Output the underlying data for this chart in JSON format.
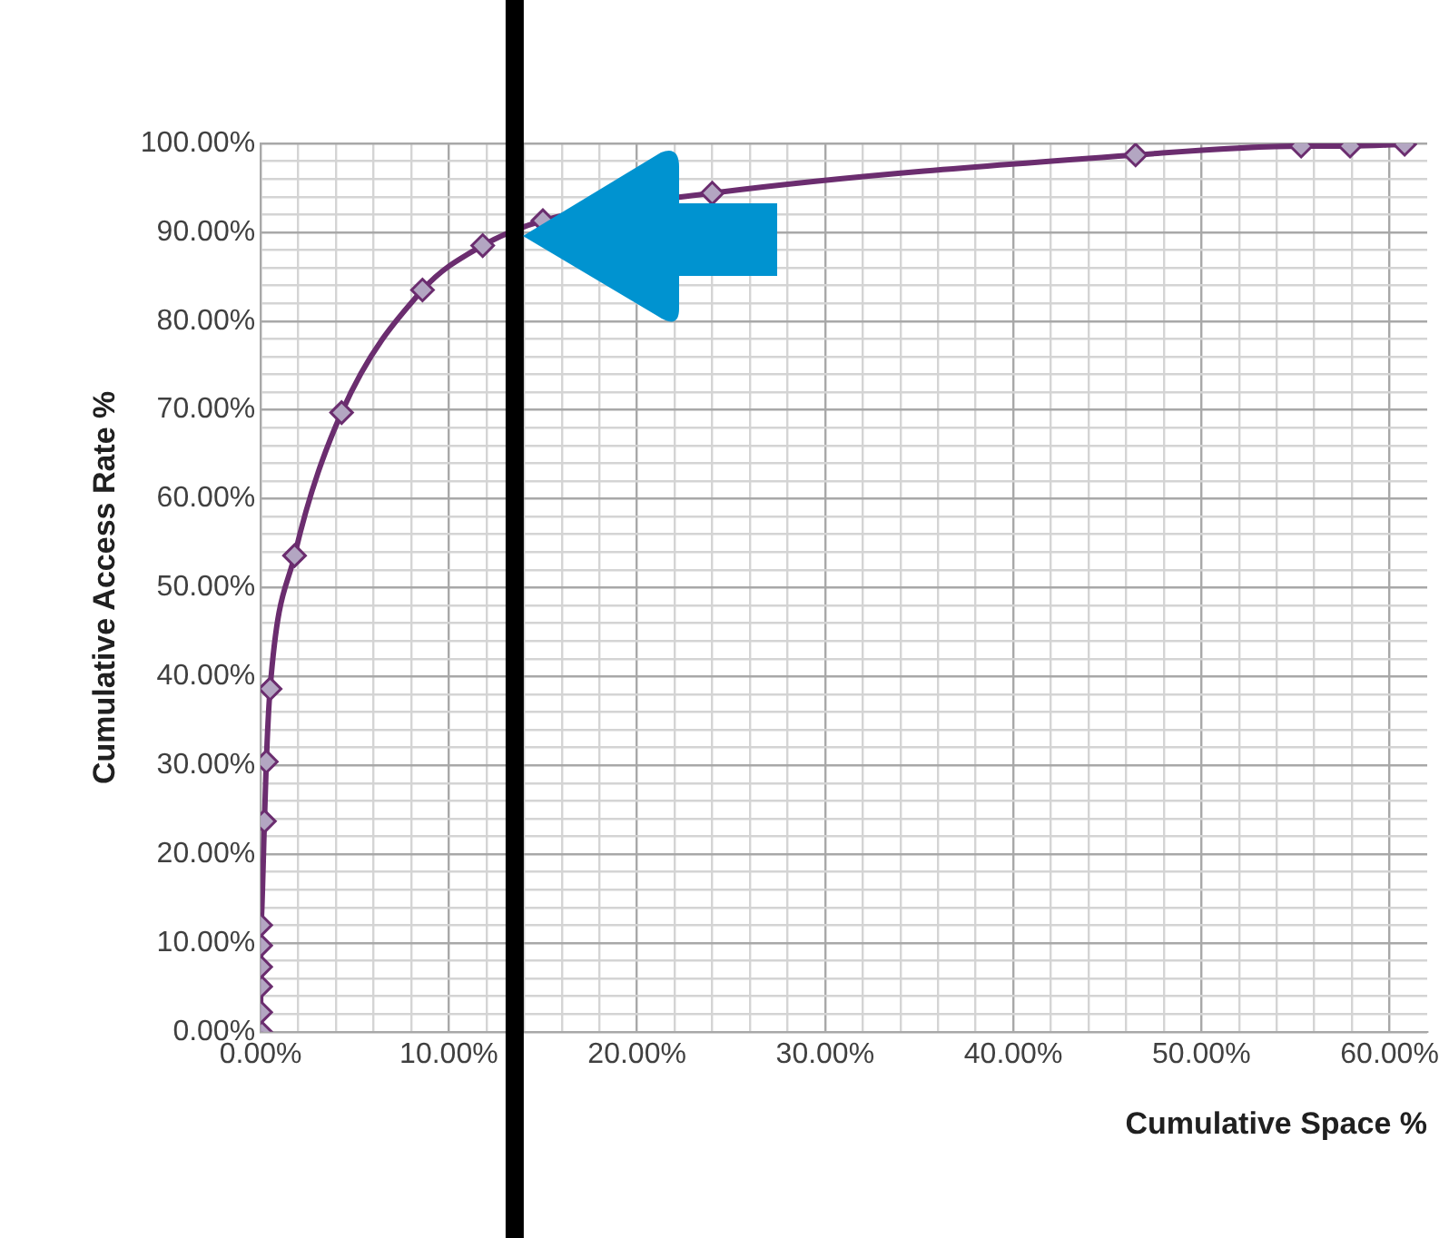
{
  "chart_data": {
    "type": "line",
    "xlabel": "Cumulative Space %",
    "ylabel": "Cumulative Access Rate %",
    "x": [
      0,
      0,
      0,
      0,
      0,
      0,
      0.2,
      0.3,
      0.5,
      1.8,
      4.3,
      8.6,
      11.8,
      15.0,
      24.0,
      46.5,
      55.3,
      57.9,
      60.8
    ],
    "series": [
      {
        "color": "#6b2d6f",
        "values": [
          0,
          2.2,
          5.1,
          7.3,
          9.7,
          12.0,
          23.7,
          30.4,
          38.6,
          53.6,
          69.7,
          83.5,
          88.5,
          91.3,
          94.4,
          98.7,
          99.7,
          99.7,
          99.9
        ]
      }
    ],
    "marker": "diamond",
    "line_style": "solid",
    "grid": true,
    "legend": false,
    "xlim": [
      0,
      62
    ],
    "ylim": [
      0,
      100
    ],
    "xticks": [
      {
        "value": 0,
        "label": "0.00%"
      },
      {
        "value": 2,
        "label": null
      },
      {
        "value": 4,
        "label": null
      },
      {
        "value": 6,
        "label": null
      },
      {
        "value": 8,
        "label": null
      },
      {
        "value": 10,
        "label": "10.00%"
      },
      {
        "value": 12,
        "label": null
      },
      {
        "value": 14,
        "label": null
      },
      {
        "value": 16,
        "label": null
      },
      {
        "value": 18,
        "label": null
      },
      {
        "value": 20,
        "label": "20.00%"
      },
      {
        "value": 22,
        "label": null
      },
      {
        "value": 24,
        "label": null
      },
      {
        "value": 26,
        "label": null
      },
      {
        "value": 28,
        "label": null
      },
      {
        "value": 30,
        "label": "30.00%"
      },
      {
        "value": 32,
        "label": null
      },
      {
        "value": 34,
        "label": null
      },
      {
        "value": 36,
        "label": null
      },
      {
        "value": 38,
        "label": null
      },
      {
        "value": 40,
        "label": "40.00%"
      },
      {
        "value": 42,
        "label": null
      },
      {
        "value": 44,
        "label": null
      },
      {
        "value": 46,
        "label": null
      },
      {
        "value": 48,
        "label": null
      },
      {
        "value": 50,
        "label": "50.00%"
      },
      {
        "value": 52,
        "label": null
      },
      {
        "value": 54,
        "label": null
      },
      {
        "value": 56,
        "label": null
      },
      {
        "value": 58,
        "label": null
      },
      {
        "value": 60,
        "label": "60.00%"
      }
    ],
    "yticks": [
      {
        "value": 0,
        "label": "0.00%"
      },
      {
        "value": 2,
        "label": null
      },
      {
        "value": 4,
        "label": null
      },
      {
        "value": 6,
        "label": null
      },
      {
        "value": 8,
        "label": null
      },
      {
        "value": 10,
        "label": "10.00%"
      },
      {
        "value": 12,
        "label": null
      },
      {
        "value": 14,
        "label": null
      },
      {
        "value": 16,
        "label": null
      },
      {
        "value": 18,
        "label": null
      },
      {
        "value": 20,
        "label": "20.00%"
      },
      {
        "value": 22,
        "label": null
      },
      {
        "value": 24,
        "label": null
      },
      {
        "value": 26,
        "label": null
      },
      {
        "value": 28,
        "label": null
      },
      {
        "value": 30,
        "label": "30.00%"
      },
      {
        "value": 32,
        "label": null
      },
      {
        "value": 34,
        "label": null
      },
      {
        "value": 36,
        "label": null
      },
      {
        "value": 38,
        "label": null
      },
      {
        "value": 40,
        "label": "40.00%"
      },
      {
        "value": 42,
        "label": null
      },
      {
        "value": 44,
        "label": null
      },
      {
        "value": 46,
        "label": null
      },
      {
        "value": 48,
        "label": null
      },
      {
        "value": 50,
        "label": "50.00%"
      },
      {
        "value": 52,
        "label": null
      },
      {
        "value": 54,
        "label": null
      },
      {
        "value": 56,
        "label": null
      },
      {
        "value": 58,
        "label": null
      },
      {
        "value": 60,
        "label": "60.00%"
      },
      {
        "value": 62,
        "label": null
      },
      {
        "value": 64,
        "label": null
      },
      {
        "value": 66,
        "label": null
      },
      {
        "value": 68,
        "label": null
      },
      {
        "value": 70,
        "label": "70.00%"
      },
      {
        "value": 72,
        "label": null
      },
      {
        "value": 74,
        "label": null
      },
      {
        "value": 76,
        "label": null
      },
      {
        "value": 78,
        "label": null
      },
      {
        "value": 80,
        "label": "80.00%"
      },
      {
        "value": 82,
        "label": null
      },
      {
        "value": 84,
        "label": null
      },
      {
        "value": 86,
        "label": null
      },
      {
        "value": 88,
        "label": null
      },
      {
        "value": 90,
        "label": "90.00%"
      },
      {
        "value": 92,
        "label": null
      },
      {
        "value": 94,
        "label": null
      },
      {
        "value": 96,
        "label": null
      },
      {
        "value": 98,
        "label": null
      },
      {
        "value": 100,
        "label": "100.00%"
      }
    ],
    "ref_lines": [
      {
        "axis": "x",
        "value": 13.5,
        "color": "#000000"
      }
    ]
  }
}
